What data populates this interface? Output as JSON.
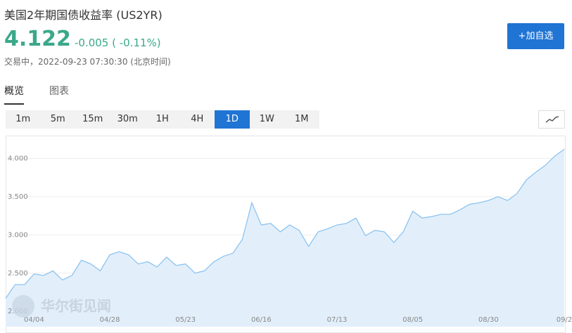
{
  "header": {
    "title": "美国2年期国债收益率  (US2YR)",
    "price": "4.122",
    "change": "-0.005 ( -0.11%)",
    "status": "交易中，2022-09-23 07:30:30 (北京时间)",
    "button": "+加自选"
  },
  "tabs": {
    "items": [
      "概览",
      "图表"
    ],
    "active": 0
  },
  "periods": {
    "items": [
      "1m",
      "5m",
      "15m",
      "30m",
      "1H",
      "4H",
      "1D",
      "1W",
      "1M"
    ],
    "active": 6
  },
  "watermark": "华尔街见闻",
  "chart_data": {
    "type": "area",
    "color": "#8cc4f0",
    "fill": "#e2effb",
    "grid": true,
    "categories": [
      null,
      null,
      null,
      "04/04",
      null,
      null,
      null,
      null,
      null,
      null,
      null,
      "04/28",
      null,
      null,
      null,
      null,
      null,
      null,
      null,
      "05/23",
      null,
      null,
      null,
      null,
      null,
      null,
      null,
      "06/16",
      null,
      null,
      null,
      null,
      null,
      null,
      null,
      "07/13",
      null,
      null,
      null,
      null,
      null,
      null,
      null,
      "08/05",
      null,
      null,
      null,
      null,
      null,
      null,
      null,
      "08/30",
      null,
      null,
      null,
      null,
      null,
      null,
      null,
      "09/2"
    ],
    "values": [
      2.17,
      2.35,
      2.35,
      2.49,
      2.47,
      2.53,
      2.41,
      2.47,
      2.67,
      2.62,
      2.53,
      2.74,
      2.78,
      2.74,
      2.62,
      2.65,
      2.58,
      2.71,
      2.6,
      2.62,
      2.5,
      2.53,
      2.65,
      2.72,
      2.76,
      2.94,
      3.42,
      3.13,
      3.15,
      3.04,
      3.13,
      3.06,
      2.85,
      3.04,
      3.08,
      3.13,
      3.15,
      3.22,
      2.99,
      3.06,
      3.04,
      2.9,
      3.04,
      3.31,
      3.22,
      3.24,
      3.27,
      3.27,
      3.33,
      3.4,
      3.42,
      3.45,
      3.5,
      3.45,
      3.54,
      3.72,
      3.82,
      3.91,
      4.03,
      4.12
    ],
    "ylim": [
      1.8,
      4.28
    ],
    "yticks": [
      {
        "value": 2,
        "label": "2.000"
      },
      {
        "value": 2.5,
        "label": "2.500"
      },
      {
        "value": 3,
        "label": "3.000"
      },
      {
        "value": 3.5,
        "label": "3.500"
      },
      {
        "value": 4,
        "label": "4.000"
      }
    ]
  }
}
